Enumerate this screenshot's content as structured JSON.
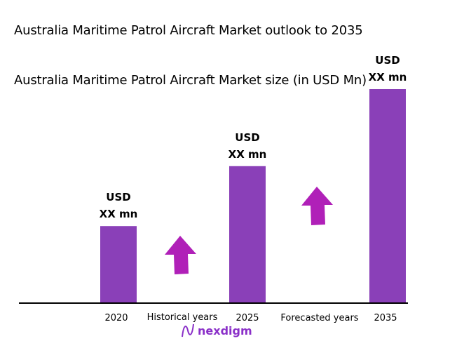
{
  "title": "Australia Maritime Patrol Aircraft Market outlook to 2035",
  "chart_data": {
    "type": "bar",
    "title": "Australia Maritime Patrol Aircraft Market size (in USD Mn)",
    "categories": [
      "2020",
      "2025",
      "2035"
    ],
    "values_relative_percent": [
      36,
      64,
      100
    ],
    "data_labels": [
      [
        "USD",
        "XX mn"
      ],
      [
        "USD",
        "XX mn"
      ],
      [
        "USD",
        "XX mn"
      ]
    ],
    "period_labels": [
      "Historical years",
      "Forecasted years"
    ],
    "bar_color": "#8a40b8",
    "arrow_color": "#b020b8",
    "grid": false
  },
  "watermark": "nexdigm"
}
